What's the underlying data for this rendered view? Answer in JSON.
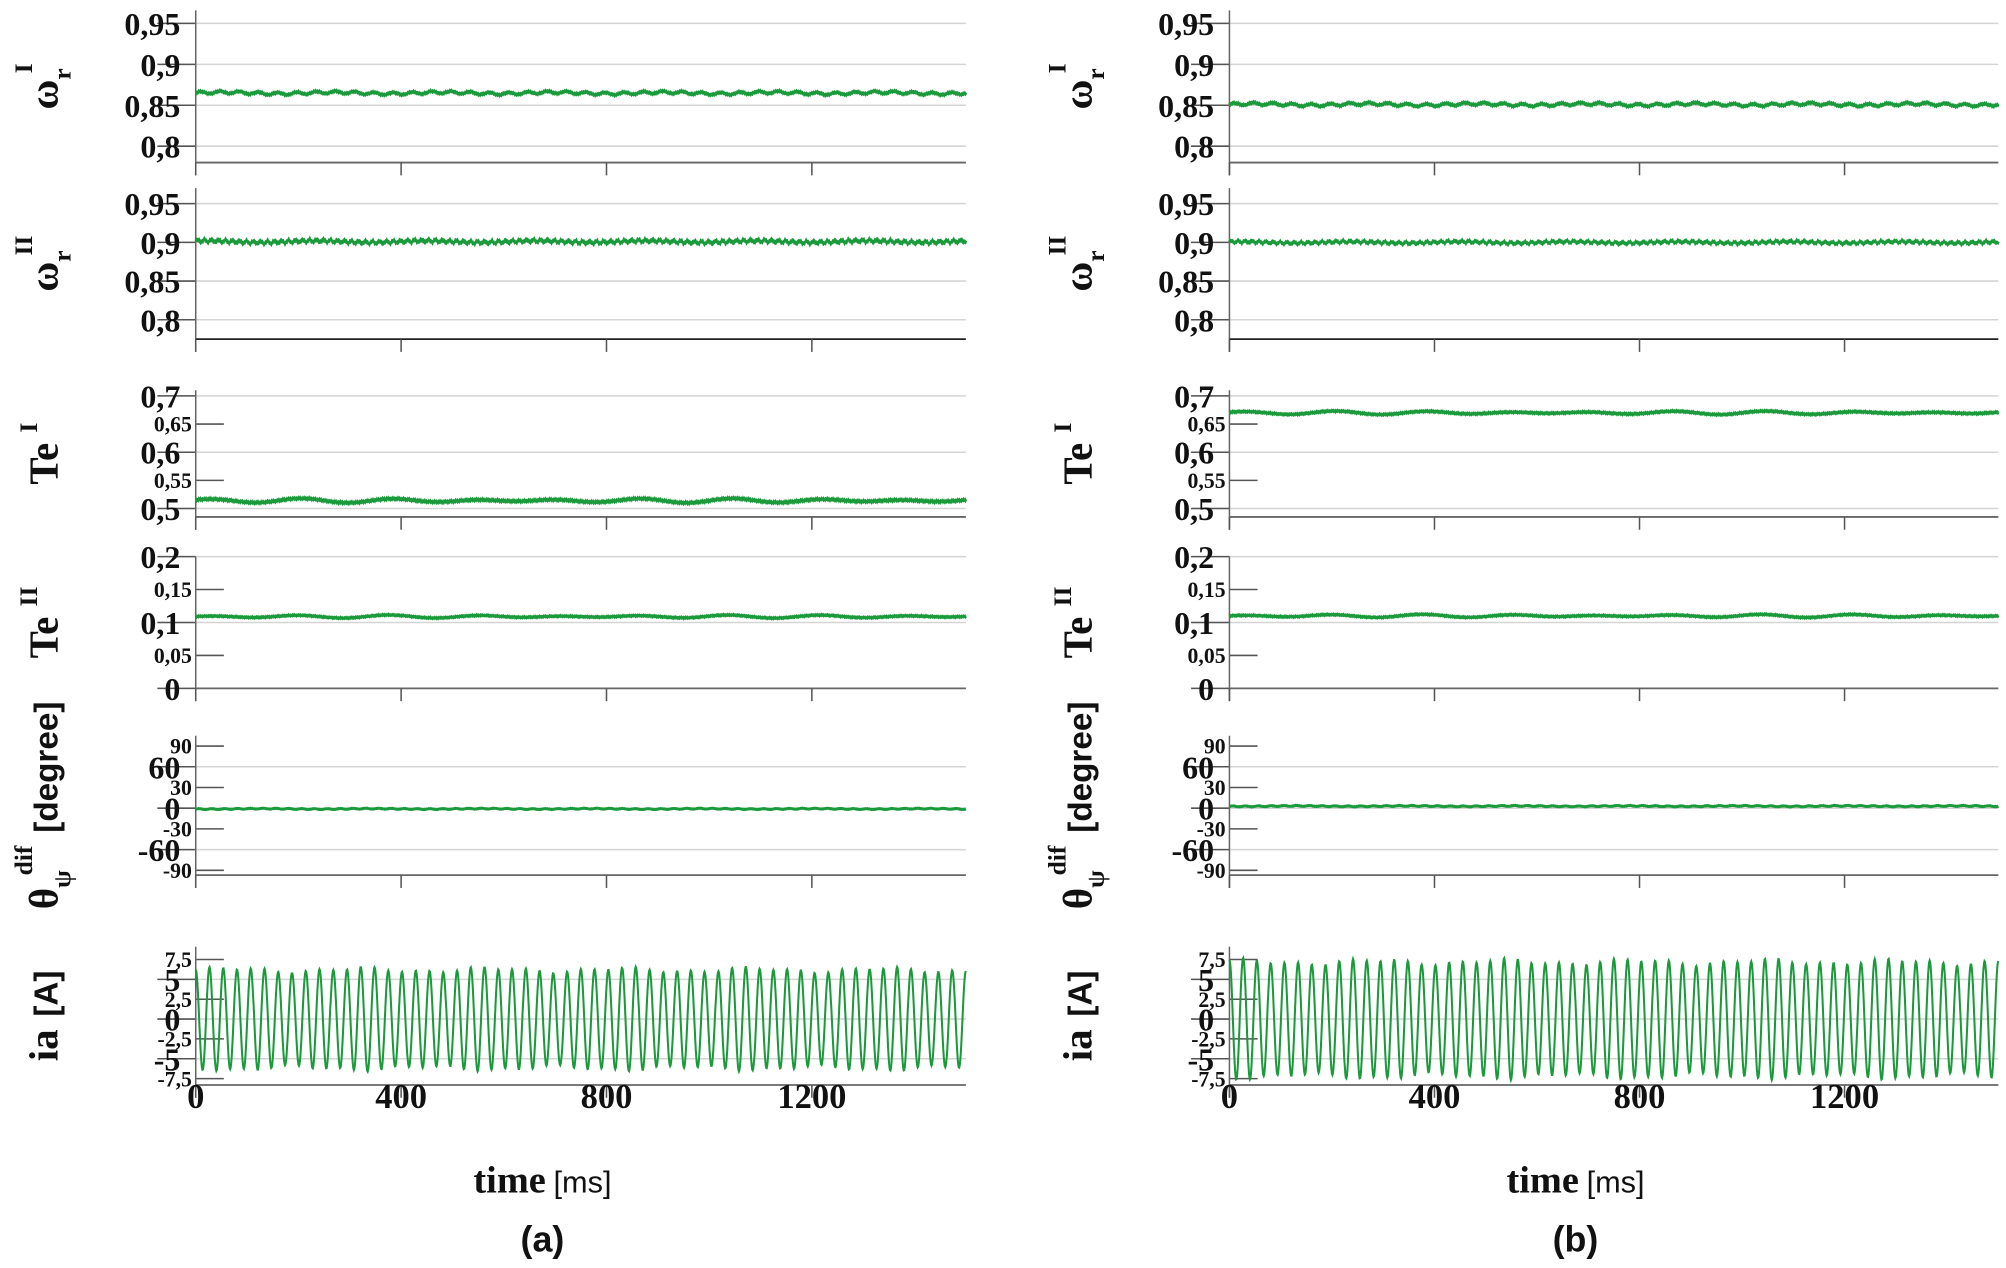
{
  "chart_data": [
    {
      "type": "line",
      "caption": "(a)",
      "xlabel": "time",
      "xunit": "[ms]",
      "xlim": [
        0,
        1500
      ],
      "xticks": [
        "0",
        "400",
        "800",
        "1200"
      ],
      "xtick_values": [
        0,
        400,
        800,
        1200
      ],
      "color": "#1a9a3a",
      "subplots": [
        {
          "ylabel": "ω",
          "ysub": "r",
          "ysup": "I",
          "yunit": "",
          "ylim": [
            0.78,
            0.966
          ],
          "major": [
            0.95,
            0.9,
            0.85,
            0.8
          ],
          "major_labels": [
            "0,95",
            "0,9",
            "0,85",
            "0,8"
          ],
          "minor": [],
          "minor_labels": [],
          "mean": 0.865,
          "ripple": 0.0015,
          "ripple_periods": 40
        },
        {
          "ylabel": "ω",
          "ysub": "r",
          "ysup": "II",
          "yunit": "",
          "ylim": [
            0.775,
            0.97
          ],
          "major": [
            0.95,
            0.9,
            0.85,
            0.8
          ],
          "major_labels": [
            "0,95",
            "0,9",
            "0,85",
            "0,8"
          ],
          "minor": [],
          "minor_labels": [],
          "mean": 0.901,
          "ripple": 0.0018,
          "ripple_periods": 110
        },
        {
          "ylabel": "Te",
          "ysub": "",
          "ysup": "I",
          "yunit": "",
          "ylim": [
            0.485,
            0.71
          ],
          "major": [
            0.7,
            0.6,
            0.5
          ],
          "major_labels": [
            "0,7",
            "0,6",
            "0,5"
          ],
          "minor": [
            0.65,
            0.55
          ],
          "minor_labels": [
            "0,65",
            "0,55"
          ],
          "mean": 0.514,
          "ripple": 0.0025,
          "ripple_periods": 9
        },
        {
          "ylabel": "Te",
          "ysub": "",
          "ysup": "II",
          "yunit": "",
          "ylim": [
            0,
            0.2
          ],
          "major": [
            0.2,
            0.1,
            0
          ],
          "major_labels": [
            "0,2",
            "0,1",
            "0"
          ],
          "minor": [
            0.15,
            0.05
          ],
          "minor_labels": [
            "0,15",
            "0,05"
          ],
          "mean": 0.109,
          "ripple": 0.0015,
          "ripple_periods": 9
        },
        {
          "ylabel": "θ",
          "ysub": "ψ",
          "ysup": "dif",
          "yunit": "[degree]",
          "ylim": [
            -97,
            105
          ],
          "major": [
            60,
            0,
            -60
          ],
          "major_labels": [
            "60",
            "0",
            "-60"
          ],
          "minor": [
            90,
            30,
            -30,
            -90
          ],
          "minor_labels": [
            "90",
            "30",
            "-30",
            "-90"
          ],
          "mean": -1,
          "ripple": 0.6,
          "ripple_periods": 60
        },
        {
          "ylabel": "ia",
          "ysub": "",
          "ysup": "",
          "yunit": "[A]",
          "ylim": [
            -8.3,
            9.1
          ],
          "major": [
            5,
            0,
            -5
          ],
          "major_labels": [
            "5",
            "0",
            "-5"
          ],
          "minor": [
            7.5,
            2.5,
            -2.5,
            -7.5
          ],
          "minor_labels": [
            "7,5",
            "2,5",
            "-2,5",
            "-7,5"
          ],
          "amplitude": 6.2,
          "cycles": 56
        }
      ]
    },
    {
      "type": "line",
      "caption": "(b)",
      "xlabel": "time",
      "xunit": "[ms]",
      "xlim": [
        0,
        1500
      ],
      "xticks": [
        "0",
        "400",
        "800",
        "1200"
      ],
      "xtick_values": [
        0,
        400,
        800,
        1200
      ],
      "color": "#1a9a3a",
      "subplots": [
        {
          "ylabel": "ω",
          "ysub": "r",
          "ysup": "I",
          "yunit": "",
          "ylim": [
            0.78,
            0.966
          ],
          "major": [
            0.95,
            0.9,
            0.85,
            0.8
          ],
          "major_labels": [
            "0,95",
            "0,9",
            "0,85",
            "0,8"
          ],
          "minor": [],
          "minor_labels": [],
          "mean": 0.851,
          "ripple": 0.0015,
          "ripple_periods": 40
        },
        {
          "ylabel": "ω",
          "ysub": "r",
          "ysup": "II",
          "yunit": "",
          "ylim": [
            0.775,
            0.97
          ],
          "major": [
            0.95,
            0.9,
            0.85,
            0.8
          ],
          "major_labels": [
            "0,95",
            "0,9",
            "0,85",
            "0,8"
          ],
          "minor": [],
          "minor_labels": [],
          "mean": 0.9,
          "ripple": 0.0015,
          "ripple_periods": 110
        },
        {
          "ylabel": "Te",
          "ysub": "",
          "ysup": "I",
          "yunit": "",
          "ylim": [
            0.485,
            0.71
          ],
          "major": [
            0.7,
            0.6,
            0.5
          ],
          "major_labels": [
            "0,7",
            "0,6",
            "0,5"
          ],
          "minor": [
            0.65,
            0.55
          ],
          "minor_labels": [
            "0,65",
            "0,55"
          ],
          "mean": 0.67,
          "ripple": 0.002,
          "ripple_periods": 9
        },
        {
          "ylabel": "Te",
          "ysub": "",
          "ysup": "II",
          "yunit": "",
          "ylim": [
            0,
            0.2
          ],
          "major": [
            0.2,
            0.1,
            0
          ],
          "major_labels": [
            "0,2",
            "0,1",
            "0"
          ],
          "minor": [
            0.15,
            0.05
          ],
          "minor_labels": [
            "0,15",
            "0,05"
          ],
          "mean": 0.11,
          "ripple": 0.0015,
          "ripple_periods": 9
        },
        {
          "ylabel": "θ",
          "ysub": "ψ",
          "ysup": "dif",
          "yunit": "[degree]",
          "ylim": [
            -97,
            105
          ],
          "major": [
            60,
            0,
            -60
          ],
          "major_labels": [
            "60",
            "0",
            "-60"
          ],
          "minor": [
            90,
            30,
            -30,
            -90
          ],
          "minor_labels": [
            "90",
            "30",
            "-30",
            "-90"
          ],
          "mean": 3,
          "ripple": 0.6,
          "ripple_periods": 60
        },
        {
          "ylabel": "ia",
          "ysub": "",
          "ysup": "",
          "yunit": "[A]",
          "ylim": [
            -8.3,
            9.1
          ],
          "major": [
            5,
            0,
            -5
          ],
          "major_labels": [
            "5",
            "0",
            "-5"
          ],
          "minor": [
            7.5,
            2.5,
            -2.5,
            -7.5
          ],
          "minor_labels": [
            "7,5",
            "2,5",
            "-2,5",
            "-7,5"
          ],
          "amplitude": 7.2,
          "cycles": 56
        }
      ]
    }
  ]
}
